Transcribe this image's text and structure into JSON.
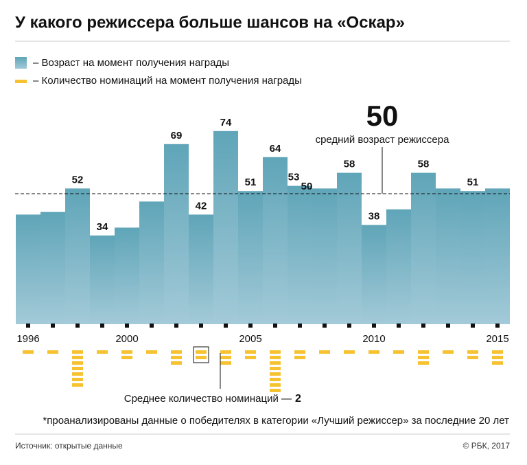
{
  "chart_data": {
    "type": "bar",
    "title": "У какого режиссера больше шансов на «Оскар»",
    "categories": [
      "1996",
      null,
      null,
      null,
      "2000",
      null,
      null,
      null,
      null,
      "2005",
      null,
      null,
      null,
      null,
      "2010",
      null,
      null,
      null,
      null,
      "2015"
    ],
    "series": [
      {
        "name": "– Возраст на момент получения награды",
        "color": "#6aaabb",
        "values": [
          42,
          43,
          52,
          34,
          37,
          47,
          69,
          42,
          74,
          51,
          64,
          53,
          52,
          58,
          38,
          44,
          58,
          52,
          51,
          52
        ],
        "value_labels": [
          null,
          null,
          "52",
          "34",
          null,
          null,
          "69",
          "42",
          "74",
          "51",
          "64",
          "53",
          null,
          "58",
          "38",
          null,
          "58",
          null,
          "51",
          null
        ]
      },
      {
        "name": "– Количество номинаций на момент получения награды",
        "color": "#f6c22f",
        "values": [
          1,
          1,
          7,
          1,
          2,
          1,
          3,
          2,
          3,
          2,
          8,
          2,
          1,
          1,
          1,
          1,
          3,
          1,
          2,
          3
        ]
      }
    ],
    "extra_value_label": "50",
    "ylim": [
      0,
      80
    ],
    "mean_age": 50,
    "mean_age_label": "средний возраст режиссера",
    "mean_nominations_label": "Среднее количество номинаций —",
    "mean_nominations": 2,
    "footnote": "*проанализированы данные о победителях в категории «Лучший режиссер» за последние 20 лет",
    "source": "Источник: открытые данные",
    "copyright": "© РБК, 2017"
  }
}
